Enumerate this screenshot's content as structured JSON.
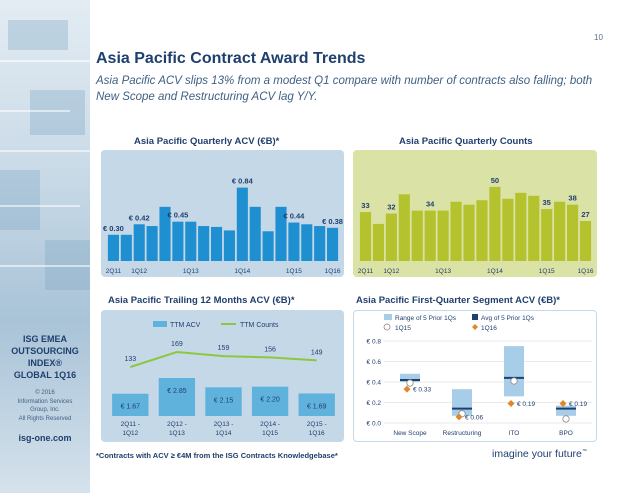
{
  "page_number": "10",
  "title": "Asia Pacific Contract Award Trends",
  "subtitle": "Asia Pacific ACV slips 13% from a modest Q1 compare with number of contracts also falling; both New Scope and Restructuring ACV lag Y/Y.",
  "sidebar": {
    "index_lines": [
      "ISG EMEA",
      "OUTSOURCING",
      "INDEX®",
      "GLOBAL 1Q16"
    ],
    "copyright_lines": [
      "© 2016",
      "Information Services",
      "Group, Inc.",
      "All Rights Reserved"
    ],
    "url": "isg-one.com"
  },
  "footnote": "*Contracts with ACV ≥ €4M from the ISG Contracts Knowledgebase*",
  "tagline": "imagine your future",
  "tagline_mark": "™",
  "colors": {
    "navy": "#1f3f6e",
    "blue_panel": "#c5d8e8",
    "blue_bar": "#1e8fd0",
    "green_panel": "#dbe2a6",
    "green_bar": "#b4c22d",
    "ttm_bar": "#5fb2dc",
    "avg_marker": "#1f3f6e",
    "q1_diamond": "#e0872a",
    "bars_1q16": "#8fc63f"
  },
  "panels": {
    "acv": {
      "title": "Asia Pacific Quarterly ACV (€B)*"
    },
    "counts": {
      "title": "Asia Pacific Quarterly Counts"
    },
    "ttm": {
      "title": "Asia Pacific Trailing 12 Months ACV (€B)*"
    },
    "segment": {
      "title": "Asia Pacific First-Quarter Segment ACV (€B)*"
    }
  },
  "chart_data": [
    {
      "type": "bar",
      "title": "Asia Pacific Quarterly ACV (€B)*",
      "x_tick_labels": [
        "2Q11",
        "1Q12",
        "1Q13",
        "1Q14",
        "1Q15",
        "1Q16"
      ],
      "values": [
        0.3,
        0.3,
        0.42,
        0.4,
        0.62,
        0.45,
        0.45,
        0.4,
        0.39,
        0.35,
        0.84,
        0.62,
        0.34,
        0.62,
        0.44,
        0.42,
        0.4,
        0.38
      ],
      "data_labels": [
        {
          "index": 0,
          "text": "€ 0.30"
        },
        {
          "index": 2,
          "text": "€ 0.42"
        },
        {
          "index": 5,
          "text": "€ 0.45"
        },
        {
          "index": 10,
          "text": "€ 0.84"
        },
        {
          "index": 14,
          "text": "€ 0.44"
        },
        {
          "index": 17,
          "text": "€ 0.38"
        }
      ],
      "ylim": [
        0,
        0.95
      ],
      "grid": false
    },
    {
      "type": "bar",
      "title": "Asia Pacific Quarterly Counts",
      "x_tick_labels": [
        "2Q11",
        "1Q12",
        "1Q13",
        "1Q14",
        "1Q15",
        "1Q16"
      ],
      "values": [
        33,
        25,
        32,
        45,
        34,
        34,
        34,
        40,
        38,
        41,
        50,
        42,
        46,
        44,
        35,
        40,
        38,
        27
      ],
      "data_labels": [
        {
          "index": 0,
          "text": "33"
        },
        {
          "index": 2,
          "text": "32"
        },
        {
          "index": 5,
          "text": "34"
        },
        {
          "index": 10,
          "text": "50"
        },
        {
          "index": 14,
          "text": "35"
        },
        {
          "index": 16,
          "text": "38"
        },
        {
          "index": 17,
          "text": "27"
        }
      ],
      "ylim": [
        0,
        56
      ],
      "grid": false
    },
    {
      "type": "bar",
      "title": "Asia Pacific Trailing 12 Months ACV (€B)*",
      "categories": [
        "2Q11 - 1Q12",
        "2Q12 - 1Q13",
        "2Q13 - 1Q14",
        "2Q14 - 1Q15",
        "2Q15 - 1Q16"
      ],
      "category_lines": [
        [
          "2Q11 -",
          "1Q12"
        ],
        [
          "2Q12 -",
          "1Q13"
        ],
        [
          "2Q13 -",
          "1Q14"
        ],
        [
          "2Q14 -",
          "1Q15"
        ],
        [
          "2Q15 -",
          "1Q16"
        ]
      ],
      "series": [
        {
          "name": "TTM ACV",
          "values": [
            1.67,
            2.85,
            2.15,
            2.2,
            1.69
          ],
          "labels": [
            "€ 1.67",
            "€ 2.85",
            "€ 2.15",
            "€ 2.20",
            "€ 1.69"
          ]
        },
        {
          "name": "TTM Counts",
          "type": "line",
          "values": [
            133,
            169,
            159,
            156,
            149
          ],
          "labels": [
            "133",
            "169",
            "159",
            "156",
            "149"
          ]
        }
      ],
      "legend": "top-center"
    },
    {
      "type": "range",
      "title": "Asia Pacific First-Quarter Segment ACV (€B)*",
      "categories": [
        "New Scope",
        "Restructuring",
        "ITO",
        "BPO"
      ],
      "y_tick_labels": [
        "€ 0.0",
        "€ 0.2",
        "€ 0.4",
        "€ 0.6",
        "€ 0.8"
      ],
      "ylim": [
        0,
        0.8
      ],
      "series": [
        {
          "name": "Range of 5 Prior 1Qs",
          "low": [
            0.4,
            0.07,
            0.26,
            0.07
          ],
          "high": [
            0.48,
            0.33,
            0.75,
            0.17
          ]
        },
        {
          "name": "Avg of 5 Prior 1Qs",
          "values": [
            0.42,
            0.14,
            0.44,
            0.14
          ]
        },
        {
          "name": "1Q15",
          "values": [
            0.39,
            0.09,
            0.41,
            0.04
          ]
        },
        {
          "name": "1Q16",
          "values": [
            0.33,
            0.06,
            0.19,
            0.19
          ],
          "labels": [
            "€ 0.33",
            "€ 0.06",
            "€ 0.19",
            "€ 0.19"
          ]
        }
      ],
      "legend": "top-left"
    }
  ]
}
